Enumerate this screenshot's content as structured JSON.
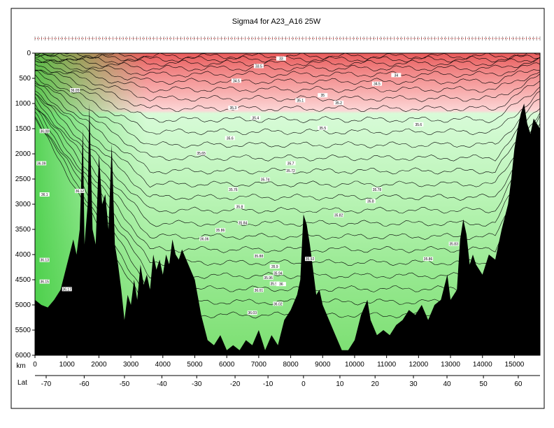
{
  "chart_data": {
    "type": "heatmap",
    "title": "Sigma4 for A23_A16 25W",
    "xlabel": "km",
    "ylabel": "",
    "secondary_xlabel": "Lat",
    "xlim": [
      0,
      15800
    ],
    "ylim": [
      6000,
      0
    ],
    "x_ticks": [
      "0",
      "1000",
      "2000",
      "3000",
      "4000",
      "5000",
      "6000",
      "7000",
      "8000",
      "9000",
      "10000",
      "11000",
      "12000",
      "13000",
      "14000",
      "15000"
    ],
    "x_tick_values": [
      0,
      1000,
      2000,
      3000,
      4000,
      5000,
      6000,
      7000,
      8000,
      9000,
      10000,
      11000,
      12000,
      13000,
      14000,
      15000
    ],
    "y_ticks": [
      "0",
      "500",
      "1000",
      "1500",
      "2000",
      "2500",
      "3000",
      "3500",
      "4000",
      "4500",
      "5000",
      "5500",
      "6000"
    ],
    "y_tick_values": [
      0,
      500,
      1000,
      1500,
      2000,
      2500,
      3000,
      3500,
      4000,
      4500,
      5000,
      5500,
      6000
    ],
    "lat_ticks": [
      "-70",
      "-60",
      "-50",
      "-40",
      "-30",
      "-20",
      "-10",
      "0",
      "10",
      "20",
      "30",
      "40",
      "50",
      "60"
    ],
    "lat_tick_km": [
      350,
      1540,
      2800,
      3970,
      5060,
      6260,
      7290,
      8400,
      9540,
      10640,
      11840,
      12890,
      14030,
      15120
    ],
    "contour_labels": [
      {
        "text": "33",
        "km": 7700,
        "depth": 120
      },
      {
        "text": "33.5",
        "km": 7000,
        "depth": 270
      },
      {
        "text": "34",
        "km": 11300,
        "depth": 450
      },
      {
        "text": "34.5",
        "km": 6300,
        "depth": 560
      },
      {
        "text": "34.5",
        "km": 10700,
        "depth": 620
      },
      {
        "text": "35",
        "km": 9000,
        "depth": 850
      },
      {
        "text": "35.1",
        "km": 8300,
        "depth": 950
      },
      {
        "text": "35.2",
        "km": 9500,
        "depth": 1000
      },
      {
        "text": "35.3",
        "km": 6200,
        "depth": 1100
      },
      {
        "text": "35.4",
        "km": 6900,
        "depth": 1300
      },
      {
        "text": "35.5",
        "km": 9000,
        "depth": 1500
      },
      {
        "text": "35.6",
        "km": 6100,
        "depth": 1700
      },
      {
        "text": "35.6",
        "km": 12000,
        "depth": 1430
      },
      {
        "text": "35.65",
        "km": 5200,
        "depth": 2000
      },
      {
        "text": "35.7",
        "km": 8000,
        "depth": 2200
      },
      {
        "text": "35.72",
        "km": 8000,
        "depth": 2350
      },
      {
        "text": "35.74",
        "km": 7200,
        "depth": 2520
      },
      {
        "text": "35.76",
        "km": 6200,
        "depth": 2720
      },
      {
        "text": "35.78",
        "km": 10700,
        "depth": 2720
      },
      {
        "text": "35.8",
        "km": 6400,
        "depth": 3060
      },
      {
        "text": "35.8",
        "km": 10500,
        "depth": 2950
      },
      {
        "text": "35.82",
        "km": 9500,
        "depth": 3230
      },
      {
        "text": "35.84",
        "km": 6500,
        "depth": 3380
      },
      {
        "text": "35.86",
        "km": 5800,
        "depth": 3530
      },
      {
        "text": "35.88",
        "km": 7000,
        "depth": 4040
      },
      {
        "text": "35.9",
        "km": 7500,
        "depth": 4250
      },
      {
        "text": "35.92",
        "km": 8600,
        "depth": 4100
      },
      {
        "text": "35.94",
        "km": 7600,
        "depth": 4380
      },
      {
        "text": "35.96",
        "km": 7300,
        "depth": 4470
      },
      {
        "text": "35.98",
        "km": 7500,
        "depth": 4590
      },
      {
        "text": "36",
        "km": 7700,
        "depth": 4600
      },
      {
        "text": "36.01",
        "km": 7000,
        "depth": 4720
      },
      {
        "text": "36.02",
        "km": 7600,
        "depth": 4990
      },
      {
        "text": "36.03",
        "km": 6800,
        "depth": 5170
      },
      {
        "text": "36.05",
        "km": 1250,
        "depth": 750
      },
      {
        "text": "36.06",
        "km": 5300,
        "depth": 3700
      },
      {
        "text": "36.08",
        "km": 300,
        "depth": 1560
      },
      {
        "text": "36.09",
        "km": 200,
        "depth": 2200
      },
      {
        "text": "36.1",
        "km": 300,
        "depth": 2820
      },
      {
        "text": "36.12",
        "km": 1400,
        "depth": 2750
      },
      {
        "text": "36.13",
        "km": 300,
        "depth": 4120
      },
      {
        "text": "36.15",
        "km": 300,
        "depth": 4550
      },
      {
        "text": "36.17",
        "km": 1000,
        "depth": 4700
      },
      {
        "text": "35.83",
        "km": 13100,
        "depth": 3800
      },
      {
        "text": "35.86",
        "km": 12300,
        "depth": 4100
      }
    ]
  }
}
